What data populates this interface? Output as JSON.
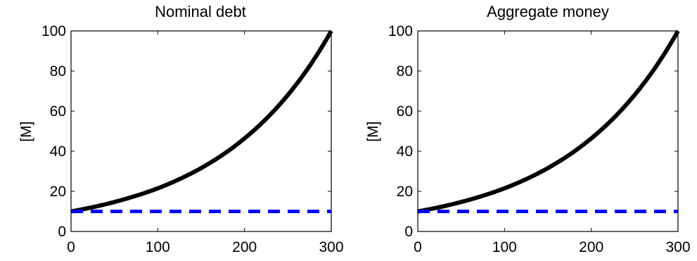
{
  "chart_data": [
    {
      "type": "line",
      "title": "Nominal debt",
      "xlabel": "",
      "ylabel": "[M]",
      "xlim": [
        0,
        300
      ],
      "ylim": [
        0,
        100
      ],
      "xticks": [
        "0",
        "100",
        "200",
        "300"
      ],
      "yticks": [
        "0",
        "20",
        "40",
        "60",
        "80",
        "100"
      ],
      "grid": false,
      "legend": "none",
      "series": [
        {
          "color": "#000000",
          "style": "solid",
          "x": [
            0,
            25,
            50,
            75,
            100,
            125,
            150,
            175,
            200,
            225,
            250,
            275,
            300
          ],
          "y": [
            10,
            12.1,
            14.7,
            17.8,
            21.5,
            26.1,
            31.6,
            38.3,
            46.4,
            56.2,
            68.1,
            82.5,
            100
          ]
        },
        {
          "color": "#0000ff",
          "style": "dashed",
          "x": [
            0,
            300
          ],
          "y": [
            10,
            10
          ]
        }
      ]
    },
    {
      "type": "line",
      "title": "Aggregate money",
      "xlabel": "",
      "ylabel": "[M]",
      "xlim": [
        0,
        300
      ],
      "ylim": [
        0,
        100
      ],
      "xticks": [
        "0",
        "100",
        "200",
        "300"
      ],
      "yticks": [
        "0",
        "20",
        "40",
        "60",
        "80",
        "100"
      ],
      "grid": false,
      "legend": "none",
      "series": [
        {
          "color": "#000000",
          "style": "solid",
          "x": [
            0,
            25,
            50,
            75,
            100,
            125,
            150,
            175,
            200,
            225,
            250,
            275,
            300
          ],
          "y": [
            10,
            12.1,
            14.7,
            17.8,
            21.5,
            26.1,
            31.6,
            38.3,
            46.4,
            56.2,
            68.1,
            82.5,
            100
          ]
        },
        {
          "color": "#0000ff",
          "style": "dashed",
          "x": [
            0,
            300
          ],
          "y": [
            10,
            10
          ]
        }
      ]
    }
  ]
}
